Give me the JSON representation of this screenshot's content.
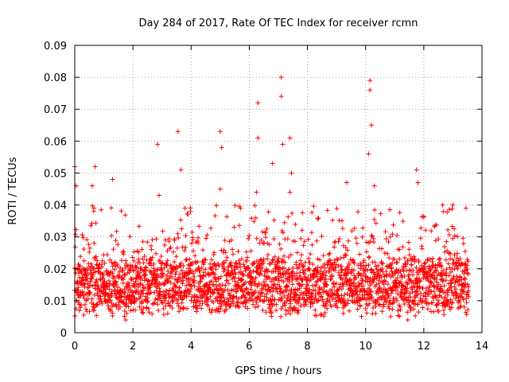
{
  "chart_data": {
    "type": "scatter",
    "title": "Day 284 of 2017, Rate Of TEC Index for receiver rcmn",
    "xlabel": "GPS time / hours",
    "ylabel": "ROTI / TECUs",
    "xlim": [
      0,
      14
    ],
    "ylim": [
      0,
      0.09
    ],
    "x_ticks": [
      0,
      2,
      4,
      6,
      8,
      10,
      12,
      14
    ],
    "x_tick_labels": [
      "0",
      "2",
      "4",
      "6",
      "8",
      "10",
      "12",
      "14"
    ],
    "y_ticks": [
      0,
      0.01,
      0.02,
      0.03,
      0.04,
      0.05,
      0.06,
      0.07,
      0.08,
      0.09
    ],
    "y_tick_labels": [
      "0",
      "0.01",
      "0.02",
      "0.03",
      "0.04",
      "0.05",
      "0.06",
      "0.07",
      "0.08",
      "0.09"
    ],
    "grid": true,
    "marker": "+",
    "series_color": "#ff0000",
    "series": [
      {
        "name": "ROTI",
        "x_range": [
          0,
          13.55
        ],
        "typical_y_range": [
          0.005,
          0.03
        ],
        "note_points": [
          {
            "x": 0.0,
            "y": 0.052
          },
          {
            "x": 0.05,
            "y": 0.046
          },
          {
            "x": 0.6,
            "y": 0.046
          },
          {
            "x": 0.7,
            "y": 0.052
          },
          {
            "x": 1.3,
            "y": 0.048
          },
          {
            "x": 2.85,
            "y": 0.059
          },
          {
            "x": 2.9,
            "y": 0.043
          },
          {
            "x": 3.55,
            "y": 0.063
          },
          {
            "x": 3.65,
            "y": 0.051
          },
          {
            "x": 5.0,
            "y": 0.063
          },
          {
            "x": 5.05,
            "y": 0.058
          },
          {
            "x": 5.0,
            "y": 0.045
          },
          {
            "x": 6.3,
            "y": 0.072
          },
          {
            "x": 6.3,
            "y": 0.061
          },
          {
            "x": 6.25,
            "y": 0.044
          },
          {
            "x": 6.8,
            "y": 0.053
          },
          {
            "x": 7.1,
            "y": 0.08
          },
          {
            "x": 7.1,
            "y": 0.074
          },
          {
            "x": 7.15,
            "y": 0.059
          },
          {
            "x": 7.4,
            "y": 0.061
          },
          {
            "x": 7.45,
            "y": 0.05
          },
          {
            "x": 7.4,
            "y": 0.044
          },
          {
            "x": 9.35,
            "y": 0.047
          },
          {
            "x": 10.15,
            "y": 0.079
          },
          {
            "x": 10.15,
            "y": 0.076
          },
          {
            "x": 10.2,
            "y": 0.065
          },
          {
            "x": 10.1,
            "y": 0.056
          },
          {
            "x": 10.3,
            "y": 0.046
          },
          {
            "x": 11.75,
            "y": 0.051
          },
          {
            "x": 11.8,
            "y": 0.047
          },
          {
            "x": 12.65,
            "y": 0.04
          },
          {
            "x": 13.0,
            "y": 0.04
          },
          {
            "x": 13.45,
            "y": 0.039
          },
          {
            "x": 1.75,
            "y": 0.004
          },
          {
            "x": 11.45,
            "y": 0.004
          }
        ]
      }
    ]
  }
}
